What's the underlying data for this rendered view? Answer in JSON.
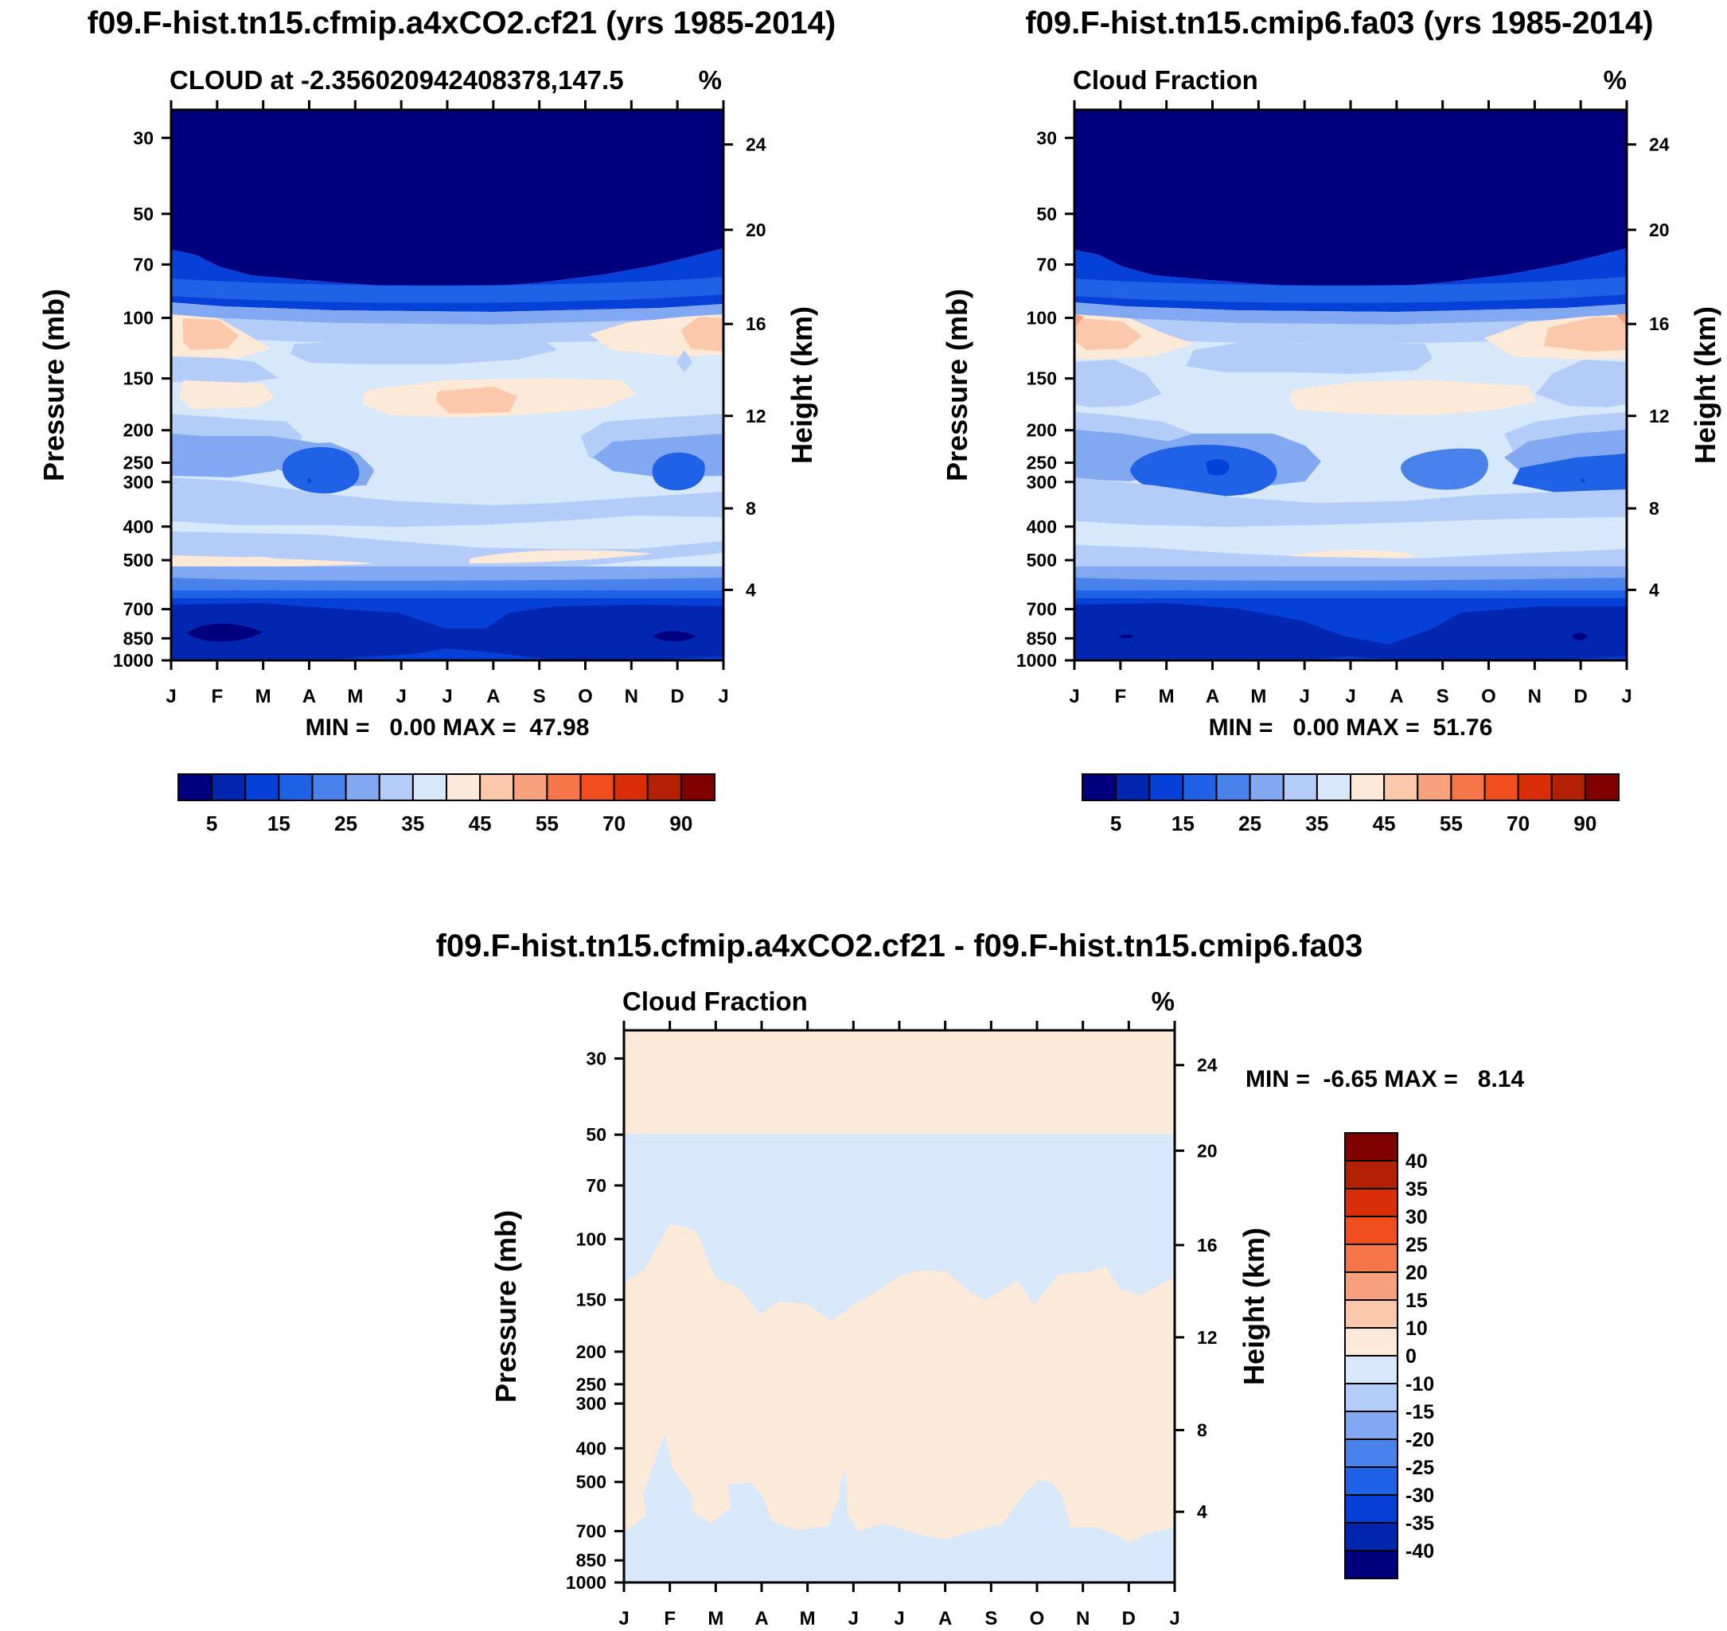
{
  "chart_data": [
    {
      "type": "contour",
      "title": "f09.F-hist.tn15.cfmip.a4xCO2.cf21 (yrs 1985-2014)",
      "left_label": "CLOUD at -2.356020942408378,147.5",
      "right_label": "%",
      "xlabel": "",
      "ylabel": "Pressure (mb)",
      "ylabel_right": "Height (km)",
      "x_ticks": [
        "J",
        "F",
        "M",
        "A",
        "M",
        "J",
        "J",
        "A",
        "S",
        "O",
        "N",
        "D",
        "J"
      ],
      "y_ticks": [
        "30",
        "50",
        "70",
        "100",
        "150",
        "200",
        "250",
        "300",
        "400",
        "500",
        "700",
        "850",
        "1000"
      ],
      "height_ticks": [
        "24",
        "20",
        "16",
        "12",
        "8",
        "4"
      ],
      "stats": "MIN =   0.00 MAX =  47.98",
      "colorbar_labels": [
        "5",
        "15",
        "25",
        "35",
        "45",
        "55",
        "70",
        "90"
      ],
      "colorbar_colors": [
        "#00007f",
        "#0226b0",
        "#0540d8",
        "#2062e6",
        "#4a82ec",
        "#82a8f2",
        "#b4ccf8",
        "#d8e8fb",
        "#fde9d8",
        "#fbc8ab",
        "#f8a27d",
        "#f57648",
        "#f04e1e",
        "#d92e08",
        "#b32004",
        "#800000"
      ]
    },
    {
      "type": "contour",
      "title": "f09.F-hist.tn15.cmip6.fa03 (yrs 1985-2014)",
      "left_label": "Cloud Fraction",
      "right_label": "%",
      "xlabel": "",
      "ylabel": "Pressure (mb)",
      "ylabel_right": "Height (km)",
      "x_ticks": [
        "J",
        "F",
        "M",
        "A",
        "M",
        "J",
        "J",
        "A",
        "S",
        "O",
        "N",
        "D",
        "J"
      ],
      "y_ticks": [
        "30",
        "50",
        "70",
        "100",
        "150",
        "200",
        "250",
        "300",
        "400",
        "500",
        "700",
        "850",
        "1000"
      ],
      "height_ticks": [
        "24",
        "20",
        "16",
        "12",
        "8",
        "4"
      ],
      "stats": "MIN =   0.00 MAX =  51.76",
      "colorbar_labels": [
        "5",
        "15",
        "25",
        "35",
        "45",
        "55",
        "70",
        "90"
      ]
    },
    {
      "type": "contour",
      "title": "f09.F-hist.tn15.cfmip.a4xCO2.cf21 - f09.F-hist.tn15.cmip6.fa03",
      "left_label": "Cloud Fraction",
      "right_label": "%",
      "xlabel": "",
      "ylabel": "Pressure (mb)",
      "ylabel_right": "Height (km)",
      "x_ticks": [
        "J",
        "F",
        "M",
        "A",
        "M",
        "J",
        "J",
        "A",
        "S",
        "O",
        "N",
        "D",
        "J"
      ],
      "y_ticks": [
        "30",
        "50",
        "70",
        "100",
        "150",
        "200",
        "250",
        "300",
        "400",
        "500",
        "700",
        "850",
        "1000"
      ],
      "height_ticks": [
        "24",
        "20",
        "16",
        "12",
        "8",
        "4"
      ],
      "stats": "MIN =  -6.65 MAX =   8.14",
      "colorbar_labels": [
        "40",
        "35",
        "30",
        "25",
        "20",
        "15",
        "10",
        "0",
        "-10",
        "-15",
        "-20",
        "-25",
        "-30",
        "-35",
        "-40"
      ],
      "colorbar_colors": [
        "#800000",
        "#b32004",
        "#d92e08",
        "#f04e1e",
        "#f57648",
        "#f8a27d",
        "#fbc8ab",
        "#fde9d8",
        "#d8e8fb",
        "#b4ccf8",
        "#82a8f2",
        "#4a82ec",
        "#2062e6",
        "#0540d8",
        "#0226b0",
        "#00007f"
      ]
    }
  ]
}
